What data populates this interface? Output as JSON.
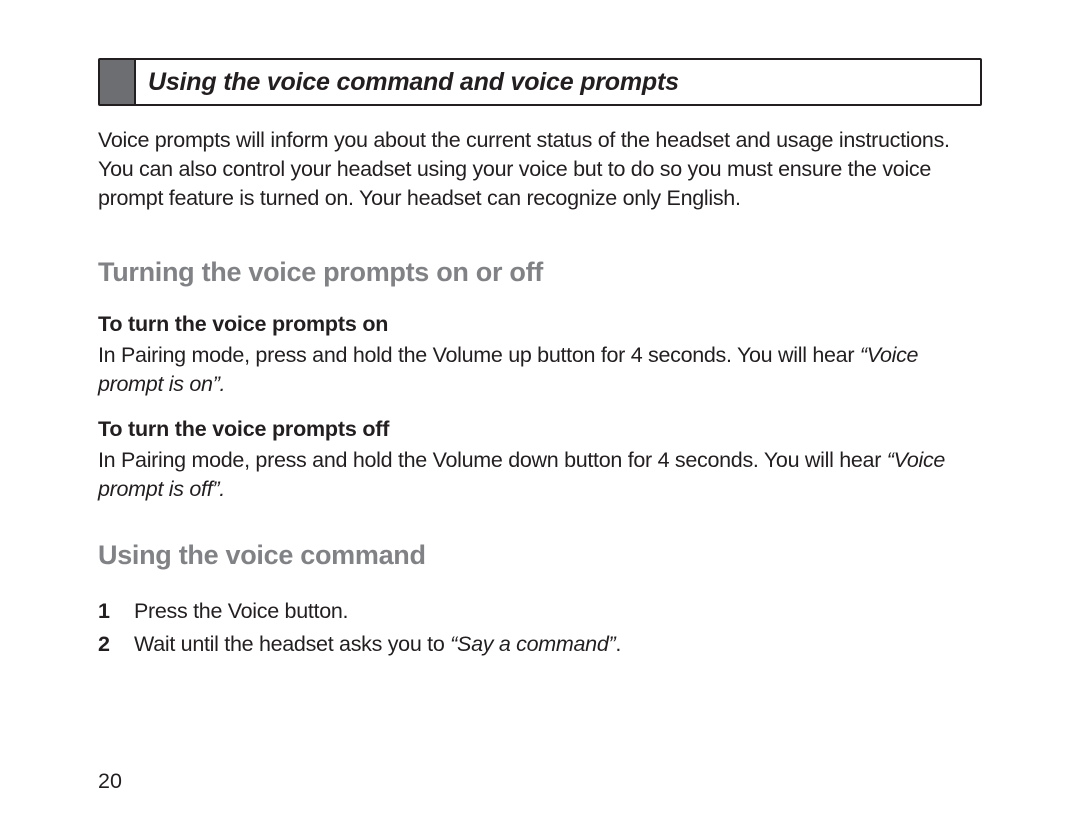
{
  "colors": {
    "text": "#231f20",
    "heading_gray": "#808285",
    "tab_gray": "#6d6e71",
    "border": "#231f20",
    "background": "#ffffff"
  },
  "typography": {
    "body_fontsize_pt": 16,
    "title_fontsize_pt": 19,
    "heading_fontsize_pt": 20,
    "page_number_fontsize_pt": 16
  },
  "title_bar": {
    "text": "Using the voice command and voice prompts"
  },
  "intro": "Voice prompts will inform you about the current status of the headset and usage instructions. You can also control your headset using your voice but to do so you must ensure the voice prompt feature is turned on. Your headset can recognize only English.",
  "section1": {
    "heading": "Turning the voice prompts on or off",
    "on": {
      "sub_heading": "To turn the voice prompts on",
      "text": "In Pairing mode, press and hold the Volume up button for 4 seconds. You will hear ",
      "quote": "“Voice prompt is on”."
    },
    "off": {
      "sub_heading": "To turn the voice prompts off",
      "text": "In Pairing mode, press and hold the Volume down button for 4 seconds. You will hear ",
      "quote": "“Voice prompt is off”."
    }
  },
  "section2": {
    "heading": "Using the voice command",
    "steps": [
      {
        "num": "1",
        "text": "Press the Voice button."
      },
      {
        "num": "2",
        "text_prefix": "Wait until the headset asks you to ",
        "quote": "“Say a command”",
        "text_suffix": "."
      }
    ]
  },
  "page_number": "20"
}
